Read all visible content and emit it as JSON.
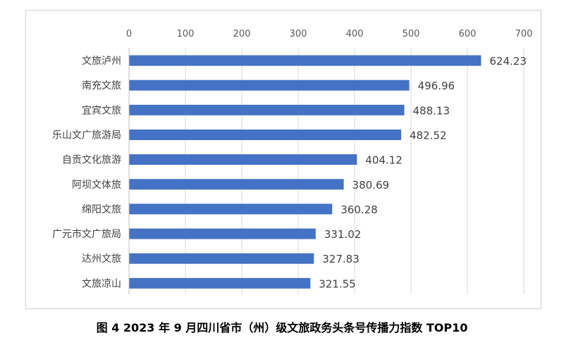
{
  "chart_data": {
    "type": "bar",
    "orientation": "horizontal",
    "categories": [
      "文旅泸州",
      "南充文旅",
      "宜宾文旅",
      "乐山文广旅游局",
      "自贡文化旅游",
      "阿坝文体旅",
      "绵阳文旅",
      "广元市文广旅局",
      "达州文旅",
      "文旅凉山"
    ],
    "values": [
      624.23,
      496.96,
      488.13,
      482.52,
      404.12,
      380.69,
      360.28,
      331.02,
      327.83,
      321.55
    ],
    "value_labels": [
      "624.23",
      "496.96",
      "488.13",
      "482.52",
      "404.12",
      "380.69",
      "360.28",
      "331.02",
      "327.83",
      "321.55"
    ],
    "xlim": [
      0,
      700
    ],
    "xticks": [
      "0",
      "100",
      "200",
      "300",
      "400",
      "500",
      "600",
      "700"
    ],
    "axis_position": "top",
    "grid": true,
    "legend": "none",
    "bar_color": "#4472C4"
  },
  "caption": "图 4  2023 年 9 月四川省市（州）级文旅政务头条号传播力指数 TOP10"
}
